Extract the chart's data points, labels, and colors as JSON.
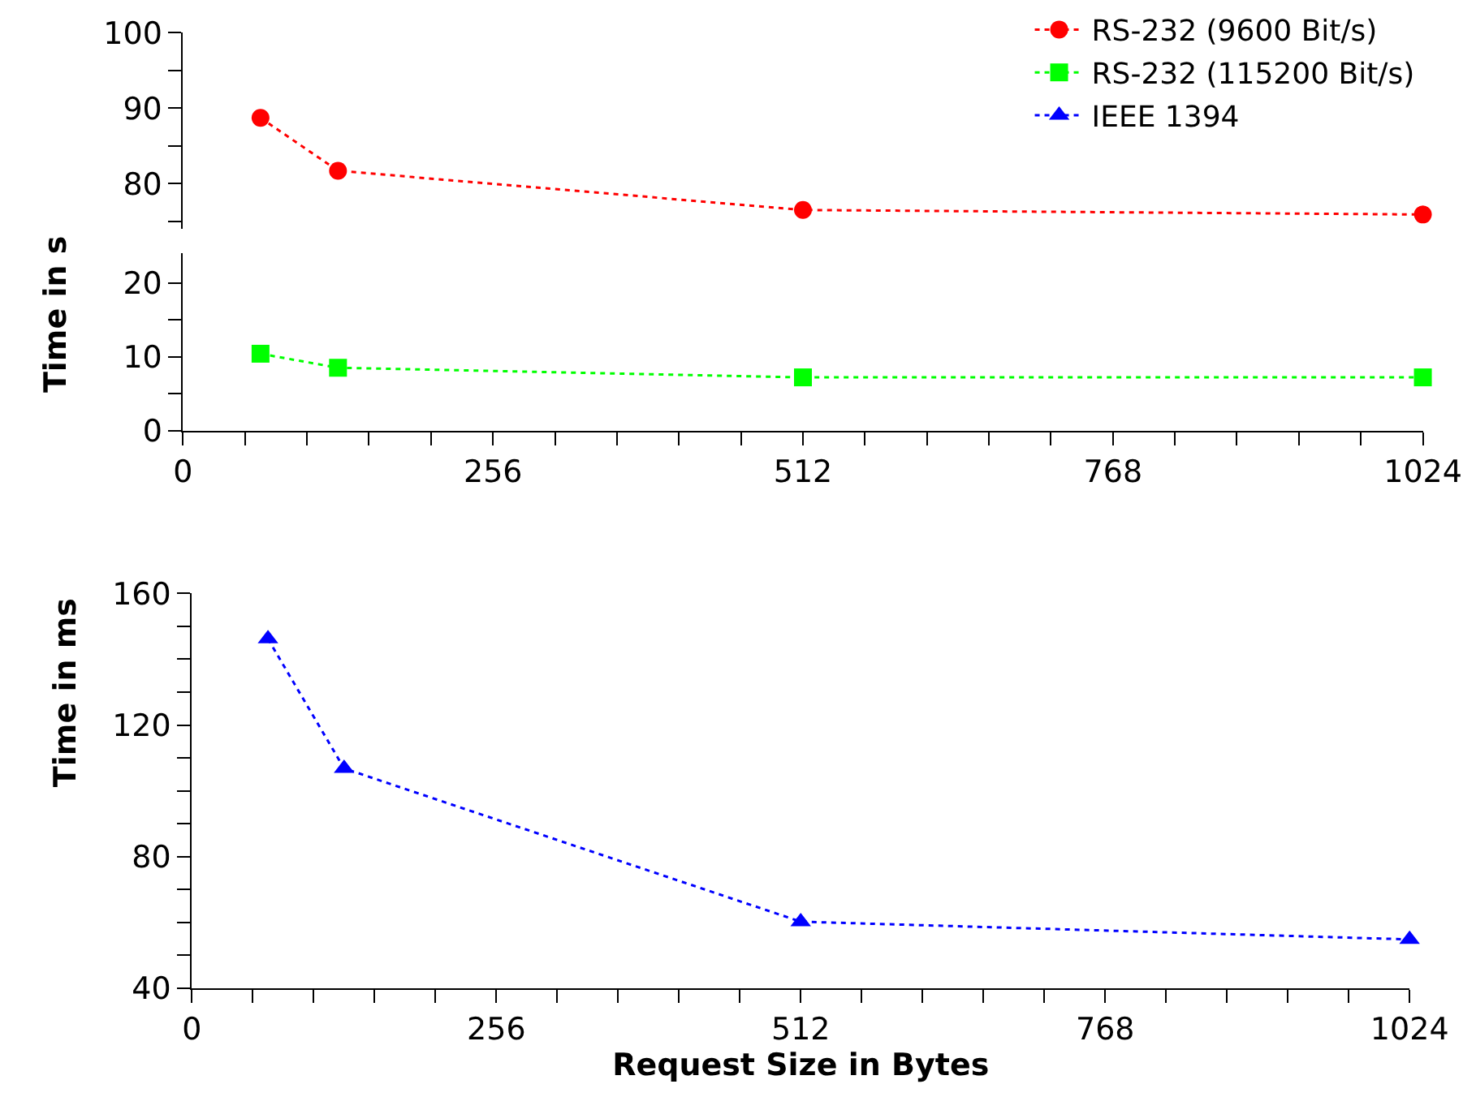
{
  "chart_data": [
    {
      "type": "line",
      "x": [
        64,
        128,
        512,
        1024
      ],
      "xlim": [
        0,
        1024
      ],
      "xticks": [
        0,
        256,
        512,
        768,
        1024
      ],
      "ylim": [
        74,
        100
      ],
      "yticks": [
        {
          "value": 75,
          "label": null
        },
        80,
        {
          "value": 85,
          "label": null
        },
        90,
        {
          "value": 95,
          "label": null
        },
        100
      ],
      "tick_labels": "y",
      "marker": "circle",
      "line_style": "dotted",
      "legend": "top right",
      "series": [
        {
          "name": "RS-232 (9600 Bit/s)",
          "color": "#ff0000",
          "values": [
            88.7,
            81.7,
            76.5,
            75.9
          ]
        }
      ]
    },
    {
      "type": "line",
      "x": [
        64,
        128,
        512,
        1024
      ],
      "xlim": [
        0,
        1024
      ],
      "xticks": [
        0,
        {
          "value": 51.2,
          "label": null
        },
        {
          "value": 102.4,
          "label": null
        },
        {
          "value": 153.6,
          "label": null
        },
        {
          "value": 204.8,
          "label": null
        },
        256,
        {
          "value": 307.2,
          "label": null
        },
        {
          "value": 358.4,
          "label": null
        },
        {
          "value": 409.6,
          "label": null
        },
        {
          "value": 460.8,
          "label": null
        },
        512,
        {
          "value": 563.2,
          "label": null
        },
        {
          "value": 614.4,
          "label": null
        },
        {
          "value": 665.6,
          "label": null
        },
        {
          "value": 716.8,
          "label": null
        },
        768,
        {
          "value": 819.2,
          "label": null
        },
        {
          "value": 870.4,
          "label": null
        },
        {
          "value": 921.6,
          "label": null
        },
        {
          "value": 972.8,
          "label": null
        },
        1024
      ],
      "ylim": [
        0,
        24
      ],
      "yticks": [
        0,
        {
          "value": 5,
          "label": null
        },
        10,
        {
          "value": 15,
          "label": null
        },
        20
      ],
      "ylabel": "Time in s",
      "marker": "square",
      "line_style": "dotted",
      "series": [
        {
          "name": "RS-232 (115200 Bit/s)",
          "color": "#00ff00",
          "values": [
            10.4,
            8.5,
            7.2,
            7.2
          ]
        }
      ]
    },
    {
      "type": "line",
      "x": [
        64,
        128,
        512,
        1024
      ],
      "xlim": [
        0,
        1024
      ],
      "xticks": [
        0,
        {
          "value": 51.2,
          "label": null
        },
        {
          "value": 102.4,
          "label": null
        },
        {
          "value": 153.6,
          "label": null
        },
        {
          "value": 204.8,
          "label": null
        },
        256,
        {
          "value": 307.2,
          "label": null
        },
        {
          "value": 358.4,
          "label": null
        },
        {
          "value": 409.6,
          "label": null
        },
        {
          "value": 460.8,
          "label": null
        },
        512,
        {
          "value": 563.2,
          "label": null
        },
        {
          "value": 614.4,
          "label": null
        },
        {
          "value": 665.6,
          "label": null
        },
        {
          "value": 716.8,
          "label": null
        },
        768,
        {
          "value": 819.2,
          "label": null
        },
        {
          "value": 870.4,
          "label": null
        },
        {
          "value": 921.6,
          "label": null
        },
        {
          "value": 972.8,
          "label": null
        },
        1024
      ],
      "ylim": [
        40,
        160
      ],
      "yticks": [
        40,
        {
          "value": 50,
          "label": null
        },
        {
          "value": 60,
          "label": null
        },
        {
          "value": 70,
          "label": null
        },
        80,
        {
          "value": 90,
          "label": null
        },
        {
          "value": 100,
          "label": null
        },
        {
          "value": 110,
          "label": null
        },
        120,
        {
          "value": 130,
          "label": null
        },
        {
          "value": 140,
          "label": null
        },
        {
          "value": 150,
          "label": null
        },
        160
      ],
      "xlabel": "Request Size in Bytes",
      "ylabel": "Time in ms",
      "marker": "triangle",
      "line_style": "dotted",
      "series": [
        {
          "name": "IEEE 1394",
          "color": "#0000ff",
          "values": [
            146.2,
            106.8,
            60.2,
            54.8
          ]
        }
      ]
    }
  ]
}
